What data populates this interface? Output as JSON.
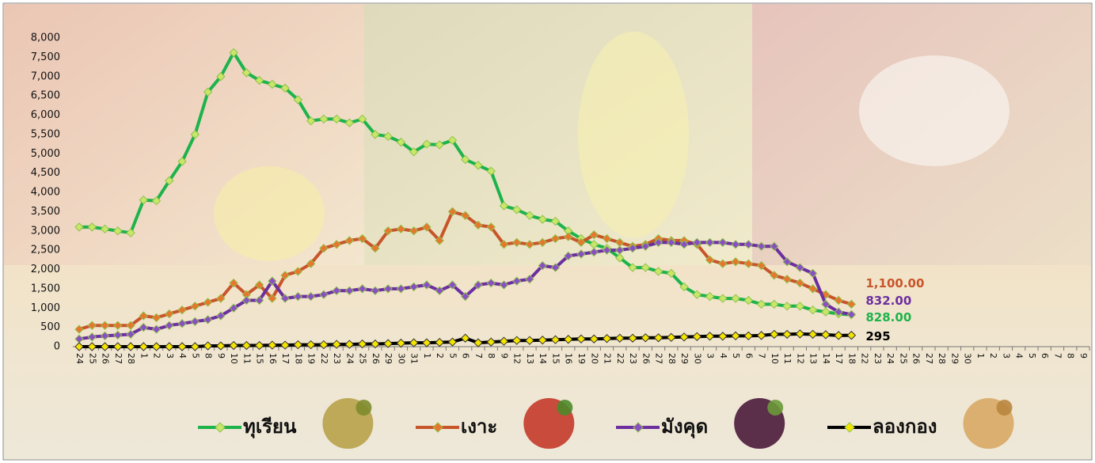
{
  "chart_data": {
    "type": "line",
    "categories": [
      "24",
      "25",
      "26",
      "27",
      "28",
      "1",
      "2",
      "3",
      "4",
      "5",
      "8",
      "9",
      "10",
      "11",
      "15",
      "16",
      "17",
      "18",
      "19",
      "22",
      "23",
      "24",
      "25",
      "26",
      "29",
      "30",
      "31",
      "1",
      "2",
      "5",
      "6",
      "7",
      "8",
      "9",
      "12",
      "13",
      "14",
      "15",
      "16",
      "19",
      "20",
      "21",
      "22",
      "23",
      "26",
      "27",
      "28",
      "29",
      "30",
      "3",
      "4",
      "5",
      "6",
      "7",
      "10",
      "11",
      "12",
      "13",
      "14",
      "17",
      "18",
      "22",
      "23",
      "24",
      "25",
      "26",
      "27",
      "28",
      "29",
      "30",
      "1",
      "2",
      "3",
      "4",
      "5",
      "6",
      "7",
      "8",
      "9"
    ],
    "ylim": [
      0,
      8000
    ],
    "yticks": [
      0,
      500,
      {
        "value": 1000,
        "label": "1,000"
      },
      {
        "value": 1500,
        "label": "1,500"
      },
      {
        "value": 2000,
        "label": "2,000"
      },
      {
        "value": 2500,
        "label": "2,500"
      },
      {
        "value": 3000,
        "label": "3,000"
      },
      {
        "value": 3500,
        "label": "3,500"
      },
      {
        "value": 4000,
        "label": "4,000"
      },
      {
        "value": 4500,
        "label": "4,500"
      },
      {
        "value": 5000,
        "label": "5,000"
      },
      {
        "value": 5500,
        "label": "5,500"
      },
      {
        "value": 6000,
        "label": "6,000"
      },
      {
        "value": 6500,
        "label": "6,500"
      },
      {
        "value": 7000,
        "label": "7,000"
      },
      {
        "value": 7500,
        "label": "7,500"
      },
      {
        "value": 8000,
        "label": "8,000"
      }
    ],
    "grid": false,
    "legend": "bottom",
    "series": [
      {
        "name": "ทุเรียน",
        "color": "#1db34b",
        "marker": "#c8e66a",
        "values": [
          3100,
          3100,
          3050,
          3000,
          2950,
          3800,
          3780,
          4300,
          4800,
          5500,
          6600,
          7000,
          7620,
          7100,
          6900,
          6800,
          6700,
          6400,
          5850,
          5900,
          5900,
          5800,
          5900,
          5500,
          5450,
          5300,
          5050,
          5250,
          5230,
          5350,
          4850,
          4700,
          4550,
          3650,
          3550,
          3400,
          3300,
          3250,
          3000,
          2800,
          2650,
          2550,
          2300,
          2050,
          2050,
          1950,
          1900,
          1550,
          1350,
          1300,
          1250,
          1250,
          1200,
          1100,
          1100,
          1050,
          1050,
          950,
          900,
          850,
          828,
          null,
          null,
          null,
          null,
          null,
          null,
          null,
          null,
          null,
          null,
          null,
          null,
          null,
          null,
          null,
          null,
          null,
          null
        ],
        "value_labels": [
          null,
          null,
          null,
          null,
          null,
          null,
          null,
          null,
          null,
          null,
          null,
          null,
          null,
          null,
          null,
          null,
          null,
          null,
          null,
          null,
          null,
          null,
          null,
          null,
          null,
          null,
          null,
          null,
          null,
          null,
          null,
          null,
          null,
          null,
          null,
          null,
          null,
          null,
          null,
          null,
          null,
          null,
          null,
          null,
          null,
          null,
          null,
          null,
          null,
          null,
          null,
          null,
          null,
          null,
          null,
          null,
          null,
          null,
          null,
          null,
          "828.00",
          null,
          null,
          null,
          null,
          null,
          null,
          null,
          null,
          null,
          null,
          null,
          null,
          null,
          null,
          null,
          null,
          null,
          null
        ]
      },
      {
        "name": "เงาะ",
        "color": "#c8552a",
        "marker": "#e8762e",
        "values": [
          450,
          550,
          550,
          550,
          550,
          800,
          750,
          850,
          950,
          1050,
          1150,
          1250,
          1650,
          1350,
          1600,
          1250,
          1850,
          1950,
          2150,
          2550,
          2650,
          2750,
          2800,
          2550,
          3000,
          3050,
          3000,
          3100,
          2750,
          3500,
          3400,
          3150,
          3100,
          2650,
          2700,
          2650,
          2700,
          2800,
          2850,
          2700,
          2900,
          2800,
          2700,
          2600,
          2650,
          2800,
          2750,
          2750,
          2650,
          2250,
          2150,
          2200,
          2150,
          2100,
          1850,
          1750,
          1650,
          1500,
          1350,
          1200,
          1100,
          null,
          null,
          null,
          null,
          null,
          null,
          null,
          null,
          null,
          null,
          null,
          null,
          null,
          null,
          null,
          null,
          null,
          null
        ],
        "value_labels": [
          null,
          null,
          null,
          null,
          null,
          null,
          null,
          null,
          null,
          null,
          null,
          null,
          null,
          null,
          null,
          null,
          null,
          null,
          null,
          null,
          null,
          null,
          null,
          null,
          null,
          null,
          null,
          null,
          null,
          null,
          null,
          null,
          null,
          null,
          null,
          null,
          null,
          null,
          null,
          null,
          null,
          null,
          null,
          null,
          null,
          null,
          null,
          null,
          null,
          null,
          null,
          null,
          null,
          null,
          null,
          null,
          null,
          null,
          null,
          null,
          "1,100.00",
          null,
          null,
          null,
          null,
          null,
          null,
          null,
          null,
          null,
          null,
          null,
          null,
          null,
          null,
          null,
          null,
          null,
          null
        ]
      },
      {
        "name": "มังคุด",
        "color": "#6b2fa0",
        "marker": "#8a4fc4",
        "values": [
          200,
          250,
          280,
          300,
          320,
          500,
          450,
          550,
          600,
          650,
          700,
          800,
          1000,
          1200,
          1200,
          1700,
          1250,
          1300,
          1300,
          1350,
          1450,
          1450,
          1500,
          1450,
          1500,
          1500,
          1550,
          1600,
          1450,
          1600,
          1300,
          1600,
          1650,
          1600,
          1700,
          1750,
          2100,
          2050,
          2350,
          2400,
          2450,
          2500,
          2500,
          2550,
          2600,
          2700,
          2700,
          2650,
          2700,
          2700,
          2700,
          2650,
          2650,
          2600,
          2600,
          2200,
          2050,
          1900,
          1100,
          900,
          832,
          null,
          null,
          null,
          null,
          null,
          null,
          null,
          null,
          null,
          null,
          null,
          null,
          null,
          null,
          null,
          null,
          null,
          null
        ],
        "value_labels": [
          null,
          null,
          null,
          null,
          null,
          null,
          null,
          null,
          null,
          null,
          null,
          null,
          null,
          null,
          null,
          null,
          null,
          null,
          null,
          null,
          null,
          null,
          null,
          null,
          null,
          null,
          null,
          null,
          null,
          null,
          null,
          null,
          null,
          null,
          null,
          null,
          null,
          null,
          null,
          null,
          null,
          null,
          null,
          null,
          null,
          null,
          null,
          null,
          null,
          null,
          null,
          null,
          null,
          null,
          null,
          null,
          null,
          null,
          null,
          null,
          "832.00",
          null,
          null,
          null,
          null,
          null,
          null,
          null,
          null,
          null,
          null,
          null,
          null,
          null,
          null,
          null,
          null,
          null,
          null
        ]
      },
      {
        "name": "ลองกอง",
        "color": "#000000",
        "marker": "#f5e400",
        "values": [
          0,
          0,
          0,
          0,
          0,
          0,
          0,
          0,
          0,
          0,
          20,
          20,
          30,
          30,
          30,
          40,
          40,
          50,
          50,
          50,
          60,
          60,
          70,
          70,
          80,
          90,
          100,
          100,
          110,
          120,
          220,
          100,
          120,
          140,
          160,
          160,
          170,
          180,
          190,
          200,
          200,
          210,
          220,
          220,
          230,
          230,
          240,
          250,
          260,
          270,
          270,
          280,
          280,
          290,
          320,
          320,
          330,
          320,
          310,
          290,
          295,
          null,
          null,
          null,
          null,
          null,
          null,
          null,
          null,
          null,
          null,
          null,
          null,
          null,
          null,
          null,
          null,
          null,
          null
        ],
        "value_labels": [
          null,
          null,
          null,
          null,
          null,
          null,
          null,
          null,
          null,
          null,
          null,
          null,
          null,
          null,
          null,
          null,
          null,
          null,
          null,
          null,
          null,
          null,
          null,
          null,
          null,
          null,
          null,
          null,
          null,
          null,
          null,
          null,
          null,
          null,
          null,
          null,
          null,
          null,
          null,
          null,
          null,
          null,
          null,
          null,
          null,
          null,
          null,
          null,
          null,
          null,
          null,
          null,
          null,
          null,
          null,
          null,
          null,
          null,
          null,
          null,
          "295",
          null,
          null,
          null,
          null,
          null,
          null,
          null,
          null,
          null,
          null,
          null,
          null,
          null,
          null,
          null,
          null,
          null,
          null
        ]
      }
    ]
  }
}
